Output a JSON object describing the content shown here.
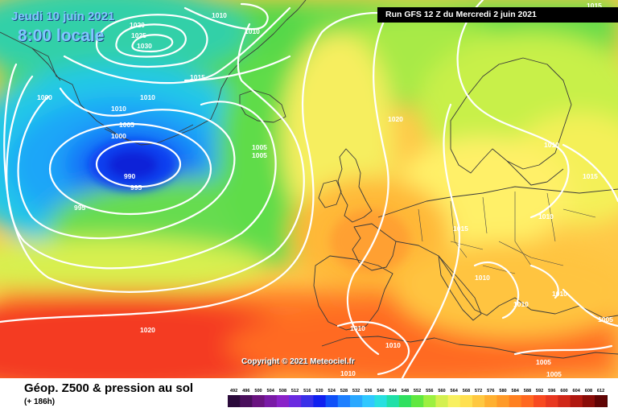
{
  "header": {
    "date_line": "Jeudi 10 juin 2021",
    "time_line": "8:00 locale",
    "run_info": "Run GFS 12 Z du Mercredi 2 juin 2021"
  },
  "map": {
    "copyright": "Copyright © 2021 Meteociel.fr",
    "isobar_labels": [
      {
        "id": "l1010-top",
        "text": "1010"
      },
      {
        "id": "l1015-topright",
        "text": "1015"
      },
      {
        "id": "l1020-a",
        "text": "1020"
      },
      {
        "id": "l1025",
        "text": "1025"
      },
      {
        "id": "l1030",
        "text": "1030"
      },
      {
        "id": "l1010-b",
        "text": "1010"
      },
      {
        "id": "l1015-b",
        "text": "1015"
      },
      {
        "id": "l1000-a",
        "text": "1000"
      },
      {
        "id": "l1010-c",
        "text": "1010"
      },
      {
        "id": "l1010-d",
        "text": "1010"
      },
      {
        "id": "l1005-a",
        "text": "1005"
      },
      {
        "id": "l1000-b",
        "text": "1000"
      },
      {
        "id": "l990",
        "text": "990"
      },
      {
        "id": "l995-a",
        "text": "995"
      },
      {
        "id": "l995-b",
        "text": "995"
      },
      {
        "id": "l1005-b",
        "text": "1005"
      },
      {
        "id": "l1005-c",
        "text": "1005"
      },
      {
        "id": "l1020-b",
        "text": "1020"
      },
      {
        "id": "l1010-e",
        "text": "1010"
      },
      {
        "id": "l1015-c",
        "text": "1015"
      },
      {
        "id": "l1010-f",
        "text": "1010"
      },
      {
        "id": "l1015-d",
        "text": "1015"
      },
      {
        "id": "l1010-g",
        "text": "1010"
      },
      {
        "id": "l1010-h",
        "text": "1010"
      },
      {
        "id": "l1010-i",
        "text": "1010"
      },
      {
        "id": "l1020-c",
        "text": "1020"
      },
      {
        "id": "l1010-j",
        "text": "1010"
      },
      {
        "id": "l1010-k",
        "text": "1010"
      },
      {
        "id": "l1010-l",
        "text": "1010"
      },
      {
        "id": "l1005-d",
        "text": "1005"
      },
      {
        "id": "l1005-e",
        "text": "1005"
      },
      {
        "id": "l1005-f",
        "text": "1005"
      }
    ]
  },
  "footer": {
    "title": "Géop. Z500 & pression au sol",
    "subtitle": "(+ 186h)"
  },
  "legend": {
    "values": [
      "492",
      "496",
      "500",
      "504",
      "508",
      "512",
      "516",
      "520",
      "524",
      "528",
      "532",
      "536",
      "540",
      "544",
      "548",
      "552",
      "556",
      "560",
      "564",
      "568",
      "572",
      "576",
      "580",
      "584",
      "588",
      "592",
      "596",
      "600",
      "604",
      "608",
      "612"
    ],
    "colors": [
      "#2a0a3a",
      "#4a0f5c",
      "#6a1480",
      "#7a1aa6",
      "#8a22c8",
      "#6a2ae0",
      "#3a30e8",
      "#1020f0",
      "#1050f8",
      "#1e80ff",
      "#2aa8ff",
      "#30c8ff",
      "#28e0e0",
      "#20e0a8",
      "#30e060",
      "#60e840",
      "#9cf040",
      "#d4f050",
      "#f8f060",
      "#ffe050",
      "#ffc840",
      "#ffb030",
      "#ff9a28",
      "#ff8020",
      "#ff6820",
      "#f84a20",
      "#e83820",
      "#d02818",
      "#b01810",
      "#8a0c08",
      "#600404",
      "#380000"
    ]
  }
}
